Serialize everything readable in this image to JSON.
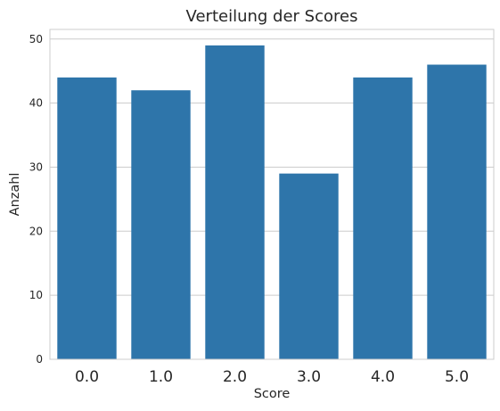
{
  "chart_data": {
    "type": "bar",
    "title": "Verteilung der Scores",
    "xlabel": "Score",
    "ylabel": "Anzahl",
    "categories": [
      "0.0",
      "1.0",
      "2.0",
      "3.0",
      "4.0",
      "5.0"
    ],
    "values": [
      44,
      42,
      49,
      29,
      44,
      46
    ],
    "ylim": [
      0,
      51.5
    ],
    "yticks": [
      0,
      10,
      20,
      30,
      40,
      50
    ],
    "ytick_labels": [
      "0",
      "10",
      "20",
      "30",
      "40",
      "50"
    ],
    "bar_color": "#2e75aa",
    "grid": true,
    "grid_color": "#cccccc"
  }
}
